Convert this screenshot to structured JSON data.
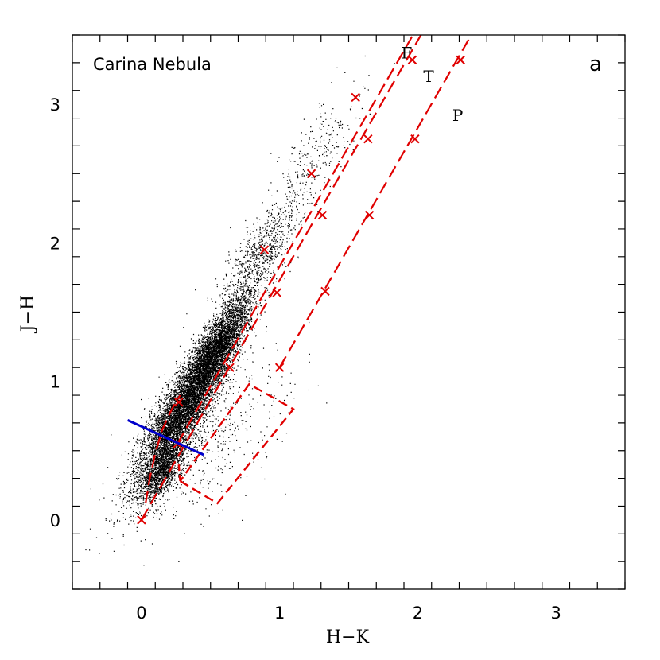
{
  "chart_data": {
    "type": "scatter",
    "title": "Carina Nebula",
    "panel_label": "a",
    "xlabel": "H−K",
    "ylabel": "J−H",
    "xlim": [
      -0.5,
      3.5
    ],
    "ylim": [
      -0.5,
      3.5
    ],
    "x_ticks": [
      0,
      1,
      2,
      3
    ],
    "y_ticks": [
      0,
      1,
      2,
      3
    ],
    "x_tick_labels": [
      "0",
      "1",
      "2",
      "3"
    ],
    "y_tick_labels": [
      "0",
      "1",
      "2",
      "3"
    ],
    "minor_step": 0.2,
    "grid": false,
    "colors": {
      "points": "#000000",
      "reddening": "#e00000",
      "ctts": "#0000cc"
    },
    "point_clusters": [
      {
        "center": [
          0.3,
          0.8
        ],
        "major_sd": 0.32,
        "minor_sd": 0.075,
        "slope": 1.75,
        "count": 9000
      },
      {
        "center": [
          0.55,
          1.25
        ],
        "major_sd": 0.22,
        "minor_sd": 0.06,
        "slope": 1.75,
        "count": 3500
      },
      {
        "center": [
          0.85,
          1.9
        ],
        "major_sd": 0.22,
        "minor_sd": 0.08,
        "slope": 1.75,
        "count": 800
      },
      {
        "center": [
          1.25,
          2.6
        ],
        "major_sd": 0.28,
        "minor_sd": 0.09,
        "slope": 1.75,
        "count": 300
      },
      {
        "center": [
          0.15,
          0.35
        ],
        "major_sd": 0.12,
        "minor_sd": 0.05,
        "slope": 1.75,
        "count": 1200
      },
      {
        "center": [
          0.5,
          0.6
        ],
        "major_sd": 0.4,
        "minor_sd": 0.2,
        "slope": 1.2,
        "count": 500
      }
    ],
    "reddening_lines": [
      {
        "name": "F",
        "start": [
          0.0,
          0.0
        ],
        "slope": 1.73,
        "markers": [
          [
            0.0,
            0.0
          ],
          [
            0.27,
            0.85
          ],
          [
            0.89,
            1.95
          ],
          [
            1.23,
            2.5
          ],
          [
            1.55,
            3.05
          ]
        ],
        "label_at": [
          1.88,
          3.33
        ]
      },
      {
        "name": "T",
        "start": [
          0.26,
          0.55
        ],
        "slope": 1.73,
        "markers": [
          [
            0.26,
            0.55
          ],
          [
            0.64,
            1.1
          ],
          [
            0.98,
            1.64
          ],
          [
            1.31,
            2.2
          ],
          [
            1.64,
            2.75
          ],
          [
            1.96,
            3.32
          ]
        ],
        "label_at": [
          2.04,
          3.16
        ]
      },
      {
        "name": "P",
        "start": [
          1.0,
          1.1
        ],
        "slope": 1.73,
        "markers": [
          [
            1.0,
            1.1
          ],
          [
            1.33,
            1.65
          ],
          [
            1.65,
            2.2
          ],
          [
            1.98,
            2.75
          ],
          [
            2.31,
            3.32
          ]
        ],
        "label_at": [
          2.25,
          2.88
        ]
      }
    ],
    "fan_curve": [
      [
        0.03,
        0.12
      ],
      [
        0.06,
        0.3
      ],
      [
        0.1,
        0.48
      ],
      [
        0.15,
        0.65
      ],
      [
        0.22,
        0.8
      ],
      [
        0.28,
        0.9
      ]
    ],
    "ctts_locus": [
      [
        -0.1,
        0.72
      ],
      [
        0.45,
        0.47
      ]
    ],
    "dashed_box": [
      [
        0.28,
        0.28
      ],
      [
        0.55,
        0.12
      ],
      [
        1.1,
        0.8
      ],
      [
        0.78,
        0.98
      ],
      [
        0.28,
        0.28
      ]
    ],
    "box_tail": [
      [
        0.28,
        0.28
      ],
      [
        0.27,
        0.4
      ]
    ]
  }
}
